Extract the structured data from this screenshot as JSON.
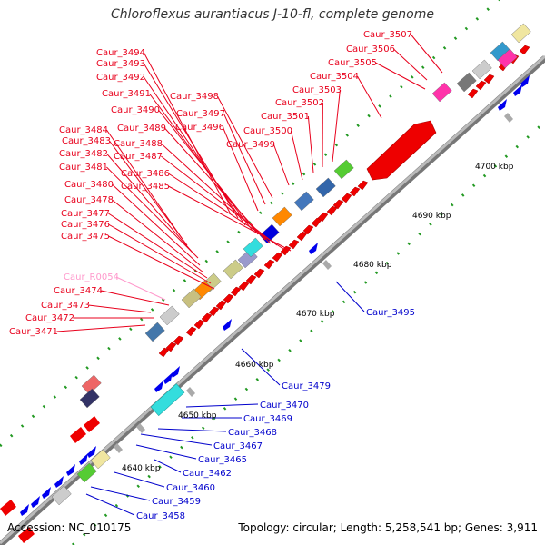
{
  "title": "Chloroflexus aurantiacus J-10-fl, complete genome",
  "footer": {
    "accession": "Accession: NC_010175",
    "topology": "Topology: circular; Length: 5,258,541 bp; Genes: 3,911"
  },
  "colors": {
    "forward_label": "#e8001c",
    "reverse_label": "#0000cc",
    "rna_label": "#ff99cc",
    "tick": "#229922",
    "backbone": "#999999"
  },
  "ticks": [
    {
      "label": "4640 kbp"
    },
    {
      "label": "4650 kbp"
    },
    {
      "label": "4660 kbp"
    },
    {
      "label": "4670 kbp"
    },
    {
      "label": "4680 kbp"
    },
    {
      "label": "4690 kbp"
    },
    {
      "label": "4700 kbp"
    }
  ],
  "forward_labels": [
    {
      "text": "Caur_3507"
    },
    {
      "text": "Caur_3506"
    },
    {
      "text": "Caur_3505"
    },
    {
      "text": "Caur_3504"
    },
    {
      "text": "Caur_3503"
    },
    {
      "text": "Caur_3502"
    },
    {
      "text": "Caur_3501"
    },
    {
      "text": "Caur_3500"
    },
    {
      "text": "Caur_3499"
    },
    {
      "text": "Caur_3498"
    },
    {
      "text": "Caur_3497"
    },
    {
      "text": "Caur_3496"
    },
    {
      "text": "Caur_3494"
    },
    {
      "text": "Caur_3493"
    },
    {
      "text": "Caur_3492"
    },
    {
      "text": "Caur_3491"
    },
    {
      "text": "Caur_3490"
    },
    {
      "text": "Caur_3489"
    },
    {
      "text": "Caur_3488"
    },
    {
      "text": "Caur_3487"
    },
    {
      "text": "Caur_3486"
    },
    {
      "text": "Caur_3485"
    },
    {
      "text": "Caur_3484"
    },
    {
      "text": "Caur_3483"
    },
    {
      "text": "Caur_3482"
    },
    {
      "text": "Caur_3481"
    },
    {
      "text": "Caur_3480"
    },
    {
      "text": "Caur_3478"
    },
    {
      "text": "Caur_3477"
    },
    {
      "text": "Caur_3476"
    },
    {
      "text": "Caur_3475"
    },
    {
      "text": "Caur_R0054"
    },
    {
      "text": "Caur_3474"
    },
    {
      "text": "Caur_3473"
    },
    {
      "text": "Caur_3472"
    },
    {
      "text": "Caur_3471"
    }
  ],
  "reverse_labels": [
    {
      "text": "Caur_3495"
    },
    {
      "text": "Caur_3479"
    },
    {
      "text": "Caur_3470"
    },
    {
      "text": "Caur_3469"
    },
    {
      "text": "Caur_3468"
    },
    {
      "text": "Caur_3467"
    },
    {
      "text": "Caur_3465"
    },
    {
      "text": "Caur_3462"
    },
    {
      "text": "Caur_3460"
    },
    {
      "text": "Caur_3459"
    },
    {
      "text": "Caur_3458"
    }
  ]
}
